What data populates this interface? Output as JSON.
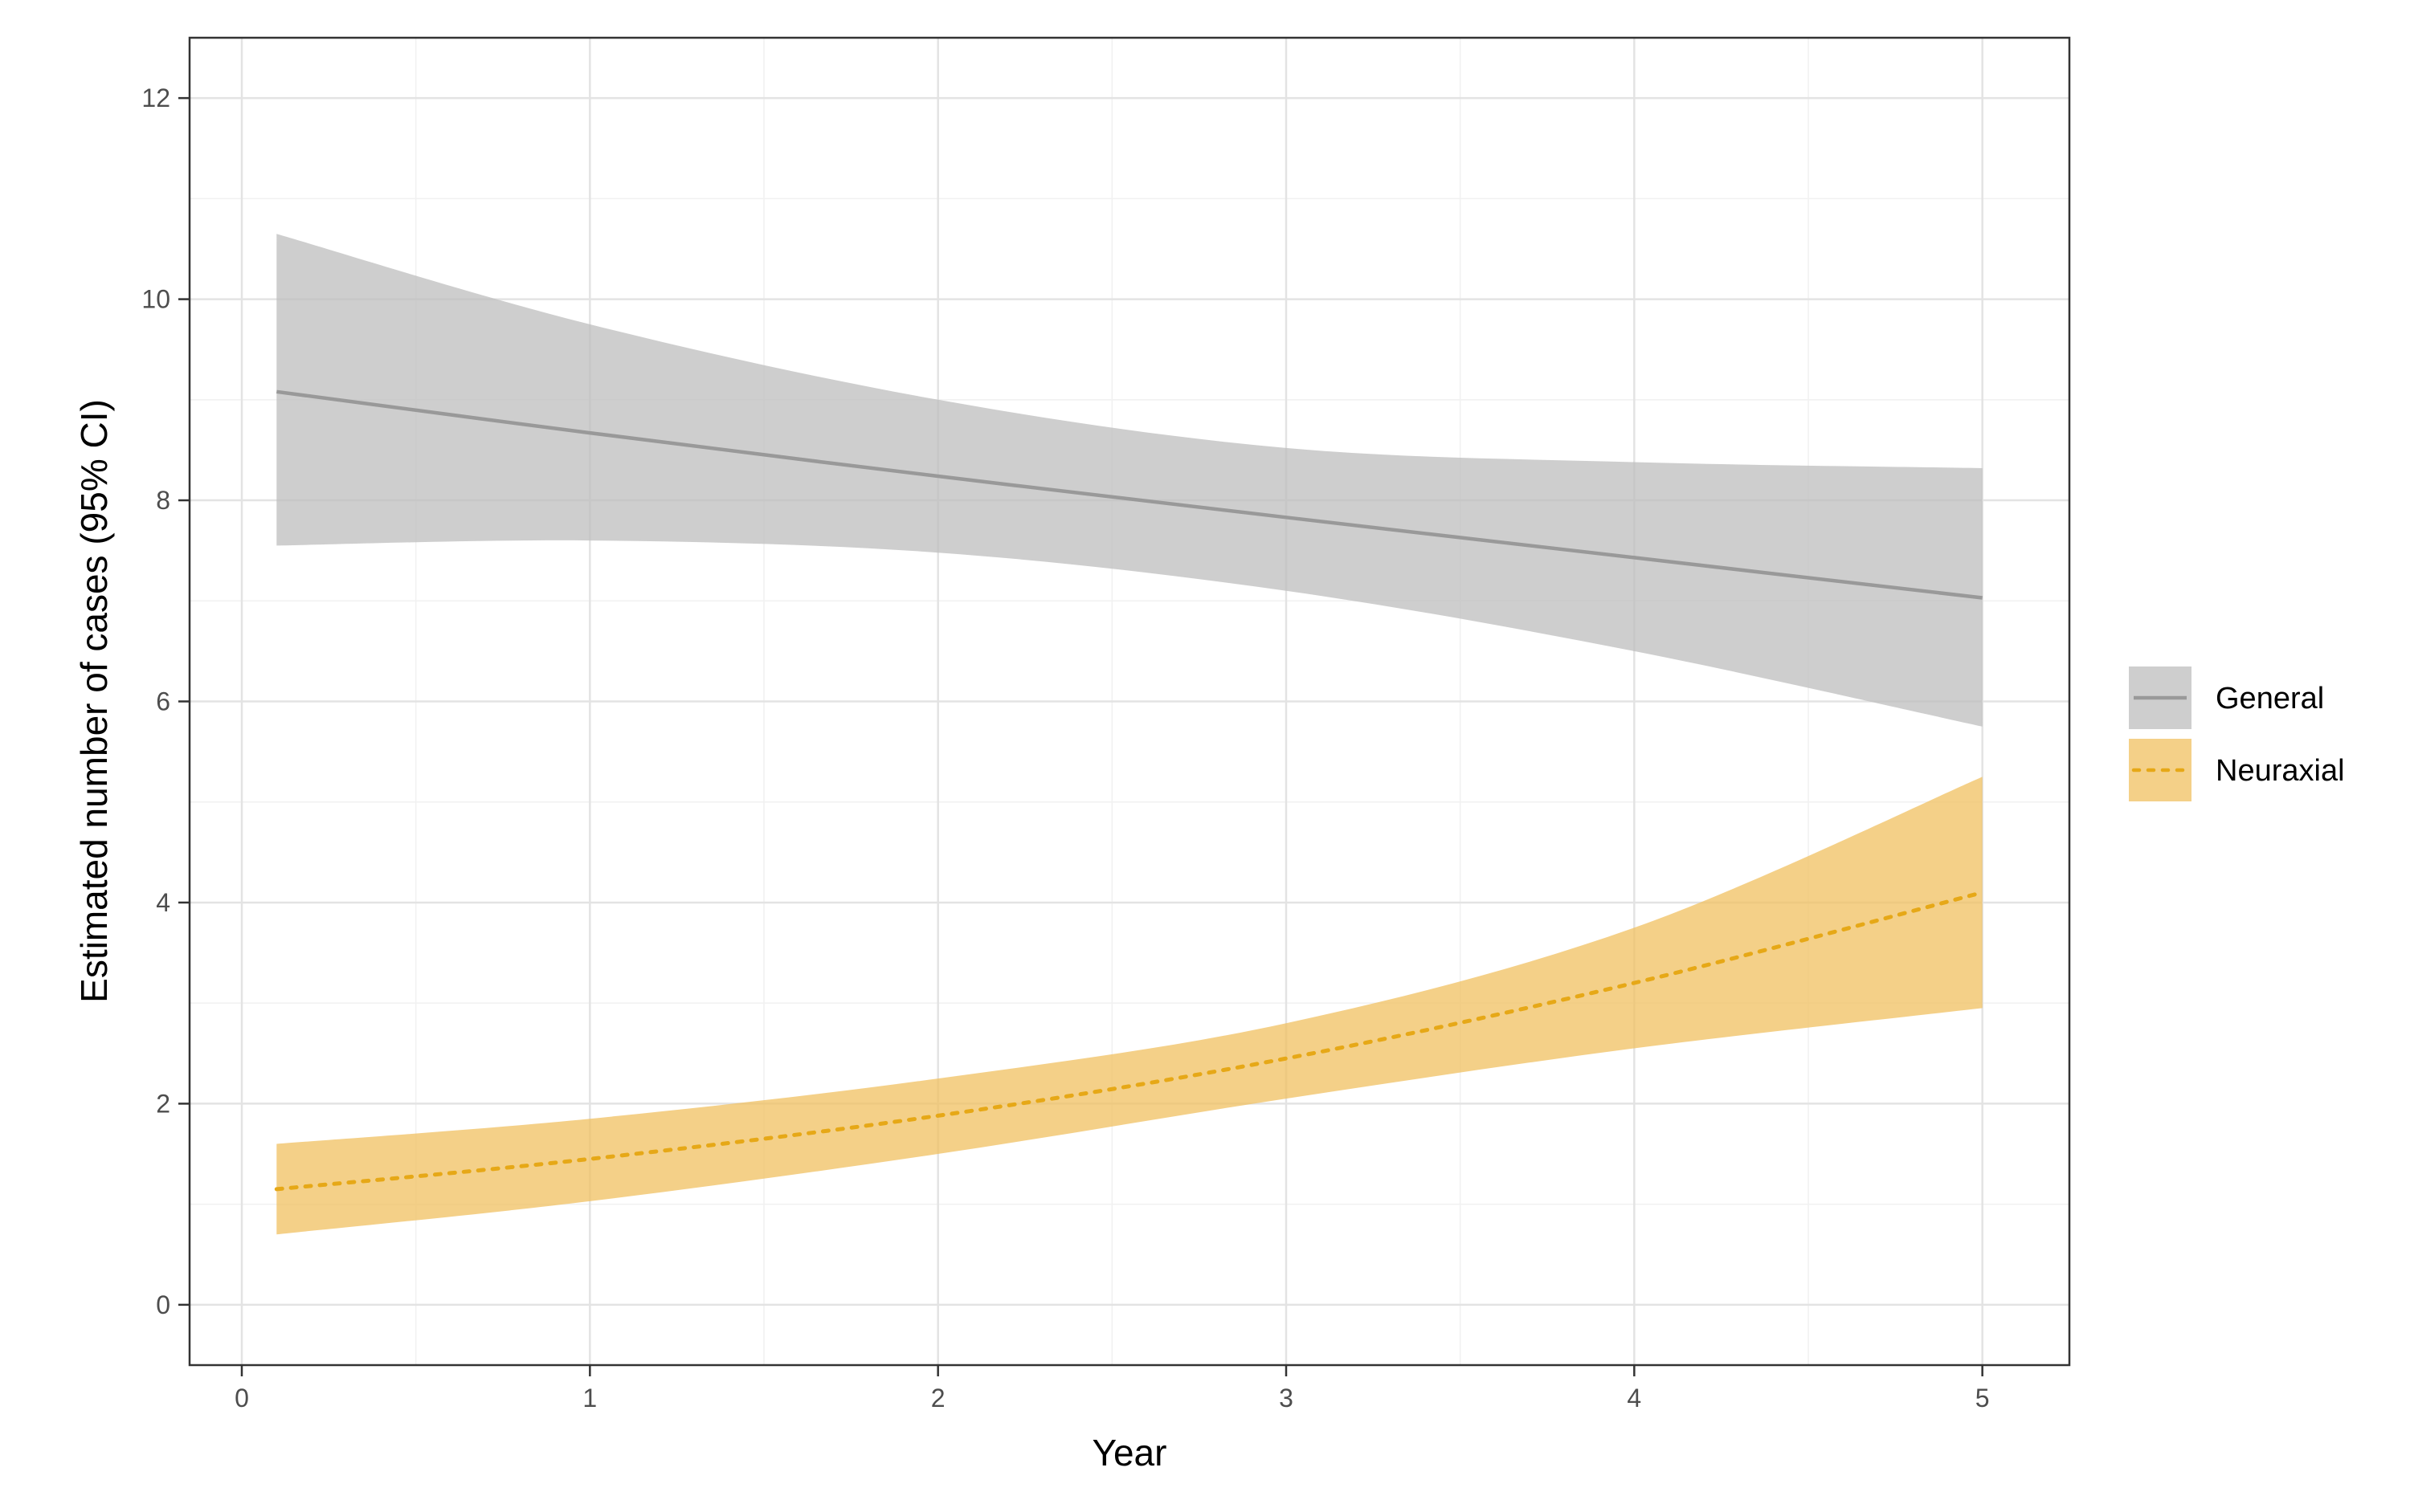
{
  "chart_data": {
    "type": "line",
    "title": "",
    "xlabel": "Year",
    "ylabel": "Estimated number of cases (95% CI)",
    "xlim": [
      -0.15,
      5.25
    ],
    "ylim": [
      -0.6,
      12.6
    ],
    "x_ticks": [
      0,
      1,
      2,
      3,
      4,
      5
    ],
    "x_tick_labels": [
      "0",
      "1",
      "2",
      "3",
      "4",
      "5"
    ],
    "y_ticks": [
      0,
      2,
      4,
      6,
      8,
      10,
      12
    ],
    "y_tick_labels": [
      "0",
      "2",
      "4",
      "6",
      "8",
      "10",
      "12"
    ],
    "grid": true,
    "legend_position": "right",
    "series": [
      {
        "name": "General",
        "color": "#999999",
        "band_color": "#bdbdbd",
        "line_style": "solid",
        "x": [
          0.1,
          1,
          2,
          3,
          4,
          5
        ],
        "y": [
          9.08,
          8.67,
          8.24,
          7.83,
          7.43,
          7.03
        ],
        "lower": [
          7.55,
          7.6,
          7.48,
          7.1,
          6.5,
          5.75
        ],
        "upper": [
          10.65,
          9.75,
          9.0,
          8.52,
          8.38,
          8.32
        ]
      },
      {
        "name": "Neuraxial",
        "color": "#e6a817",
        "band_color": "#f0c060",
        "line_style": "dotted",
        "x": [
          0.1,
          1,
          2,
          3,
          4,
          5
        ],
        "y": [
          1.15,
          1.45,
          1.88,
          2.45,
          3.2,
          4.1
        ],
        "lower": [
          0.7,
          1.03,
          1.5,
          2.05,
          2.55,
          2.95
        ],
        "upper": [
          1.6,
          1.85,
          2.25,
          2.8,
          3.75,
          5.25
        ]
      }
    ]
  }
}
